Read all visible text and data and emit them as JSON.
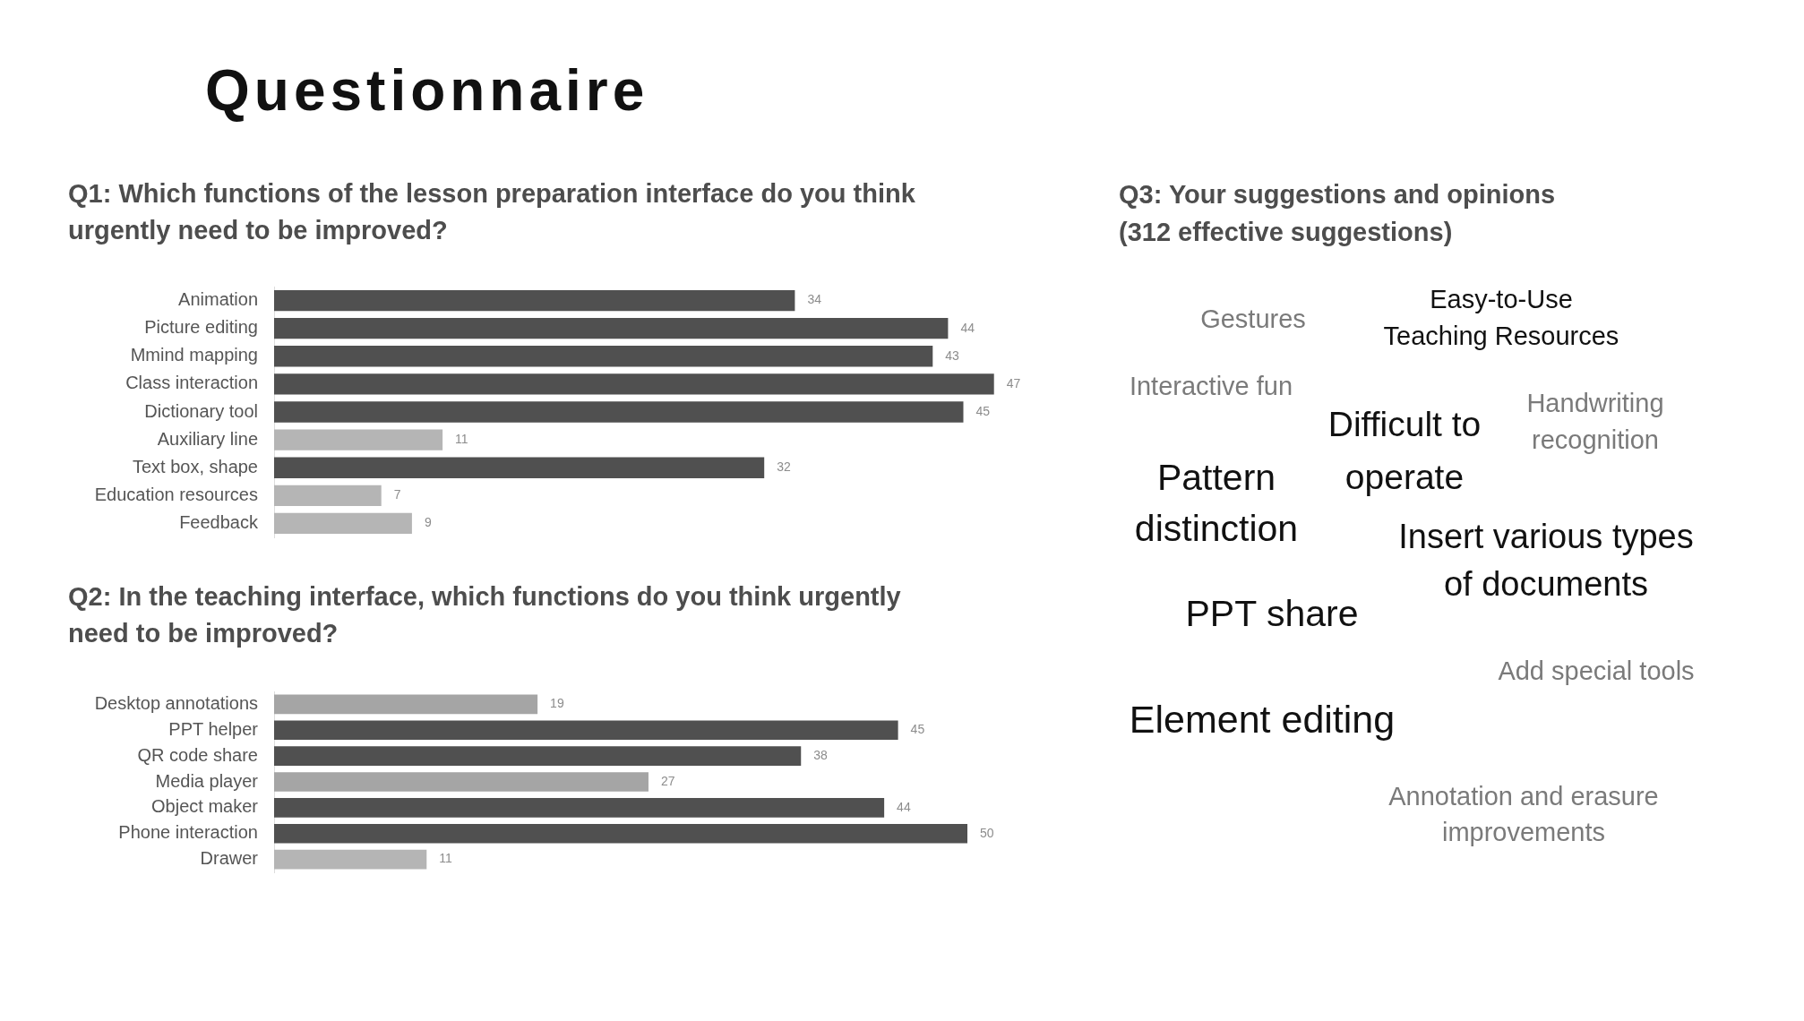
{
  "chart_data": [
    {
      "type": "other",
      "title": "Questionnaire"
    },
    {
      "type": "bar",
      "orientation": "horizontal",
      "title": "Q1: Which functions of the lesson preparation interface do you think urgently need to be improved?",
      "categories": [
        "Animation",
        "Picture editing",
        "Mmind mapping",
        "Class interaction",
        "Dictionary tool",
        "Auxiliary line",
        "Text box, shape",
        "Education resources",
        "Feedback"
      ],
      "values": [
        34,
        44,
        43,
        47,
        45,
        11,
        32,
        7,
        9
      ],
      "colors": [
        "#505050",
        "#505050",
        "#505050",
        "#505050",
        "#505050",
        "#b5b5b5",
        "#505050",
        "#b5b5b5",
        "#b5b5b5"
      ],
      "data_labels": true
    },
    {
      "type": "bar",
      "orientation": "horizontal",
      "title": "Q2: In the teaching interface, which functions do you think urgently need to be improved?",
      "categories": [
        "Desktop annotations",
        "PPT helper",
        "QR code share",
        "Media player",
        "Object maker",
        "Phone interaction",
        "Drawer"
      ],
      "values": [
        19,
        45,
        38,
        27,
        44,
        50,
        11
      ],
      "colors": [
        "#a5a5a5",
        "#505050",
        "#505050",
        "#a5a5a5",
        "#505050",
        "#505050",
        "#b5b5b5"
      ],
      "data_labels": true
    },
    {
      "type": "other",
      "title": "Q3: Your suggestions and opinions (312 effective suggestions)",
      "annotations": [
        "Gestures",
        "Easy-to-Use\nTeaching Resources",
        "Interactive fun",
        "Handwriting\nrecognition",
        "Difficult to\noperate",
        "Pattern\ndistinction",
        "Insert various types\nof documents",
        "PPT share",
        "Add special tools",
        "Element editing",
        "Annotation and erasure\nimprovements"
      ],
      "colors": [
        "#7a7a7a",
        "#111111",
        "#7a7a7a",
        "#7a7a7a",
        "#111111",
        "#111111",
        "#111111",
        "#111111",
        "#7a7a7a",
        "#111111",
        "#7a7a7a"
      ]
    }
  ]
}
